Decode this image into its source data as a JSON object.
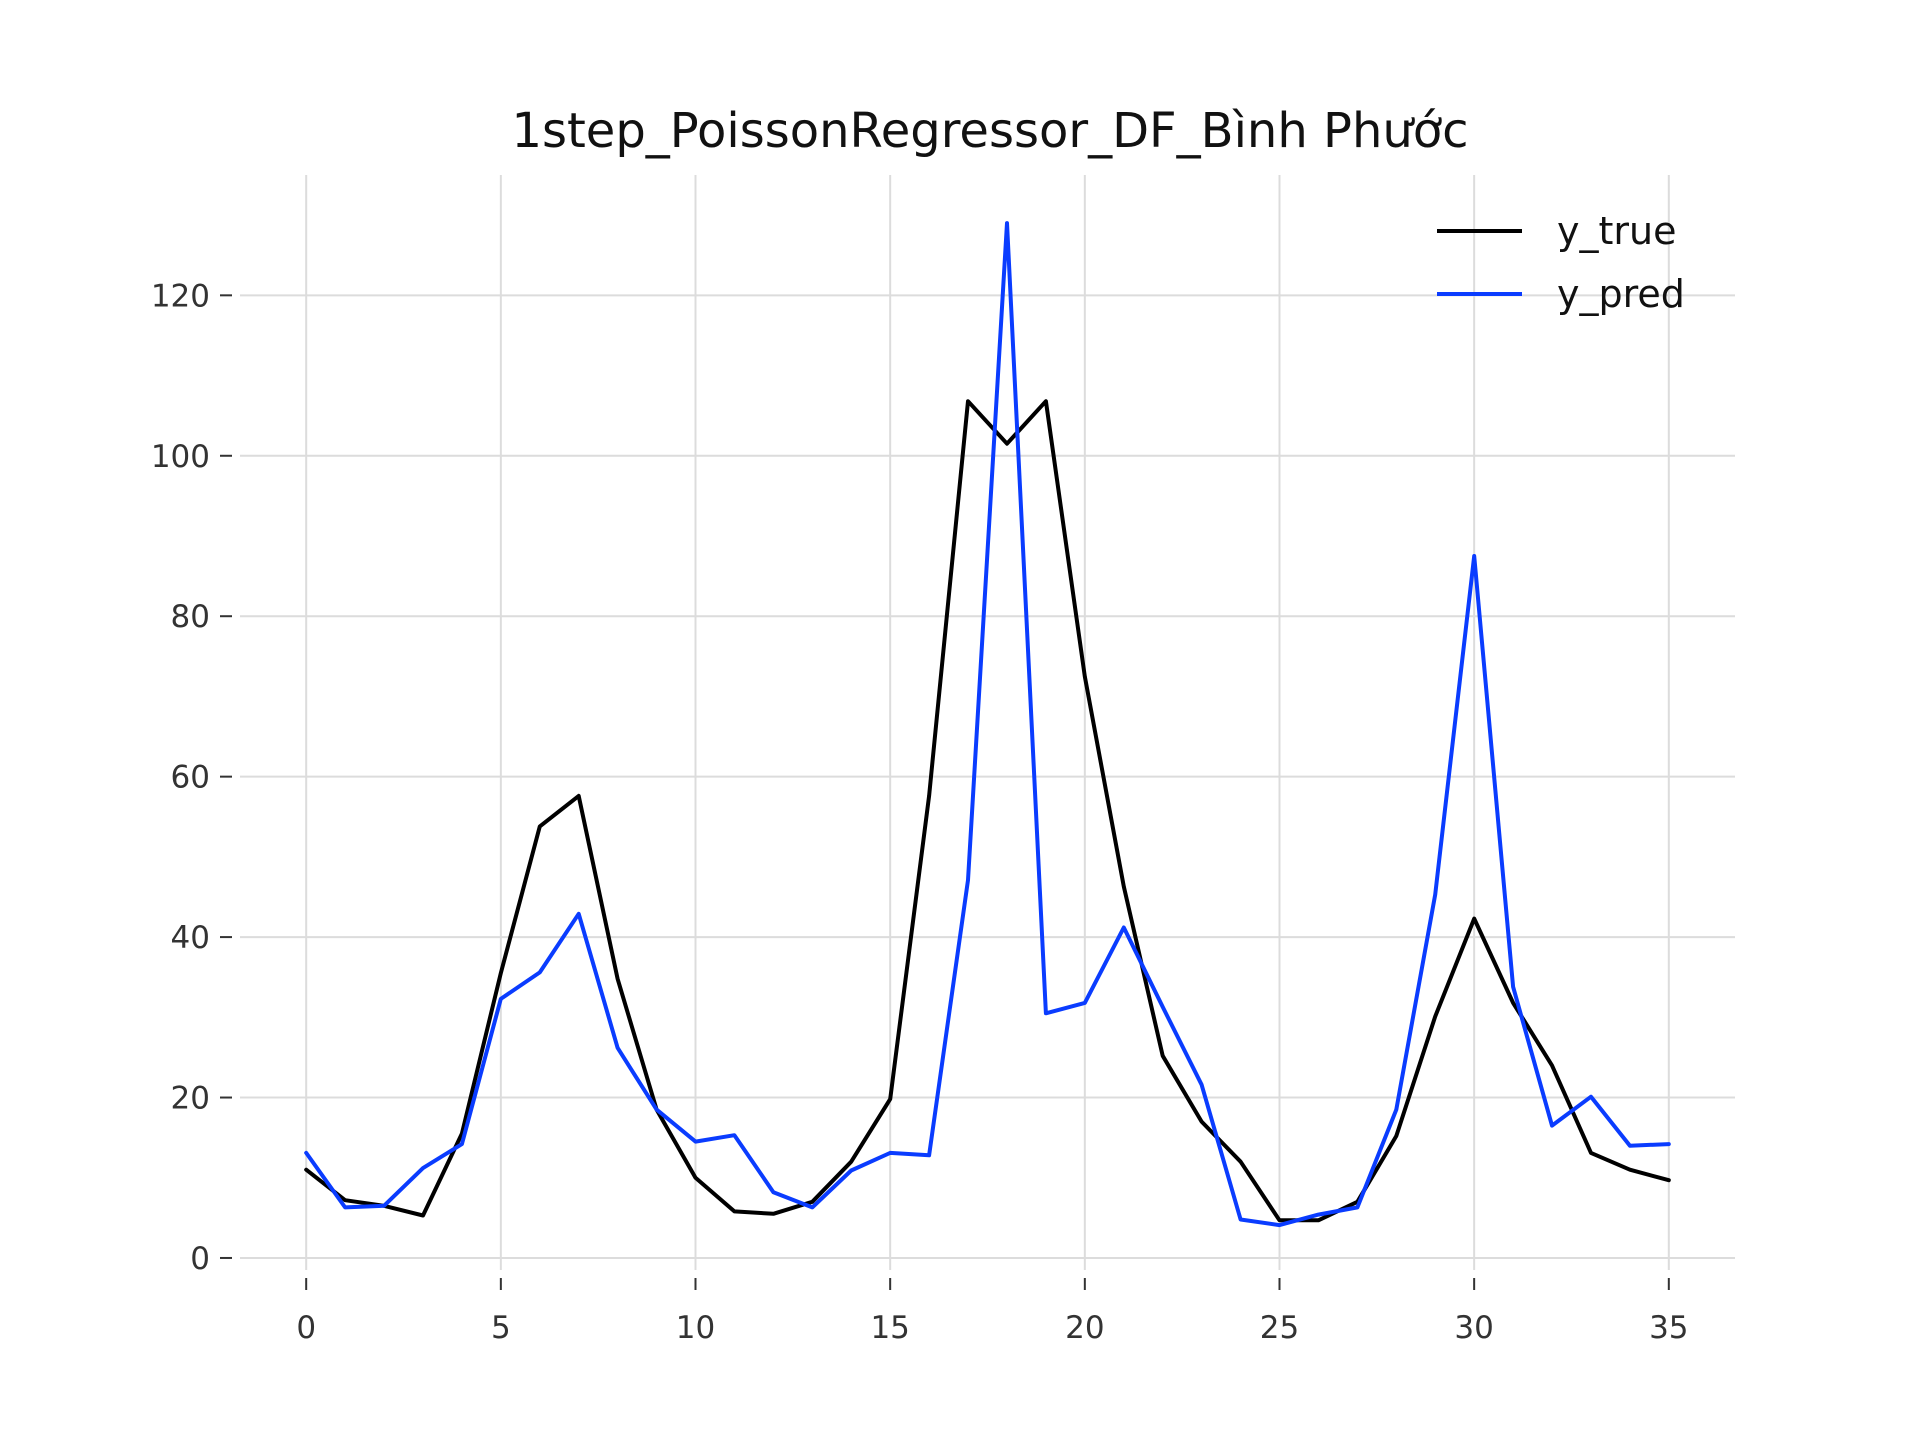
{
  "chart_data": {
    "type": "line",
    "title": "1step_PoissonRegressor_DF_Bình Phước",
    "xlabel": "",
    "ylabel": "",
    "xlim": [
      -1.7,
      36.7
    ],
    "ylim": [
      -1.5,
      135
    ],
    "xticks": [
      0,
      5,
      10,
      15,
      20,
      25,
      30,
      35
    ],
    "yticks": [
      0,
      20,
      40,
      60,
      80,
      100,
      120
    ],
    "grid": true,
    "legend_position": "top-right",
    "x": [
      0,
      1,
      2,
      3,
      4,
      5,
      6,
      7,
      8,
      9,
      10,
      11,
      12,
      13,
      14,
      15,
      16,
      17,
      18,
      19,
      20,
      21,
      22,
      23,
      24,
      25,
      26,
      27,
      28,
      29,
      30,
      31,
      32,
      33,
      34,
      35
    ],
    "series": [
      {
        "name": "y_true",
        "color": "#000000",
        "values": [
          11,
          7.2,
          6.5,
          5.3,
          15.5,
          35.5,
          53.8,
          57.6,
          34.8,
          18.5,
          10,
          5.8,
          5.5,
          7,
          12,
          19.8,
          57.6,
          106.8,
          101.5,
          106.8,
          72.5,
          46.3,
          25.2,
          17,
          12,
          4.7,
          4.7,
          7,
          15.2,
          30.1,
          42.3,
          31.8,
          24,
          13.1,
          11,
          9.7
        ],
        "values_note": ""
      },
      {
        "name": "y_pred",
        "color": "#0a3cff",
        "values": [
          13.1,
          6.3,
          6.5,
          11.2,
          14.2,
          32.3,
          35.6,
          42.9,
          26.2,
          18.5,
          14.5,
          15.3,
          8.2,
          6.3,
          10.9,
          13.1,
          12.8,
          47.1,
          129,
          30.5,
          31.8,
          41.2,
          31.3,
          21.6,
          4.8,
          4.1,
          5.4,
          6.3,
          18.5,
          45.3,
          87.5,
          33.8,
          16.5,
          20.1,
          14,
          14.2
        ]
      }
    ]
  }
}
